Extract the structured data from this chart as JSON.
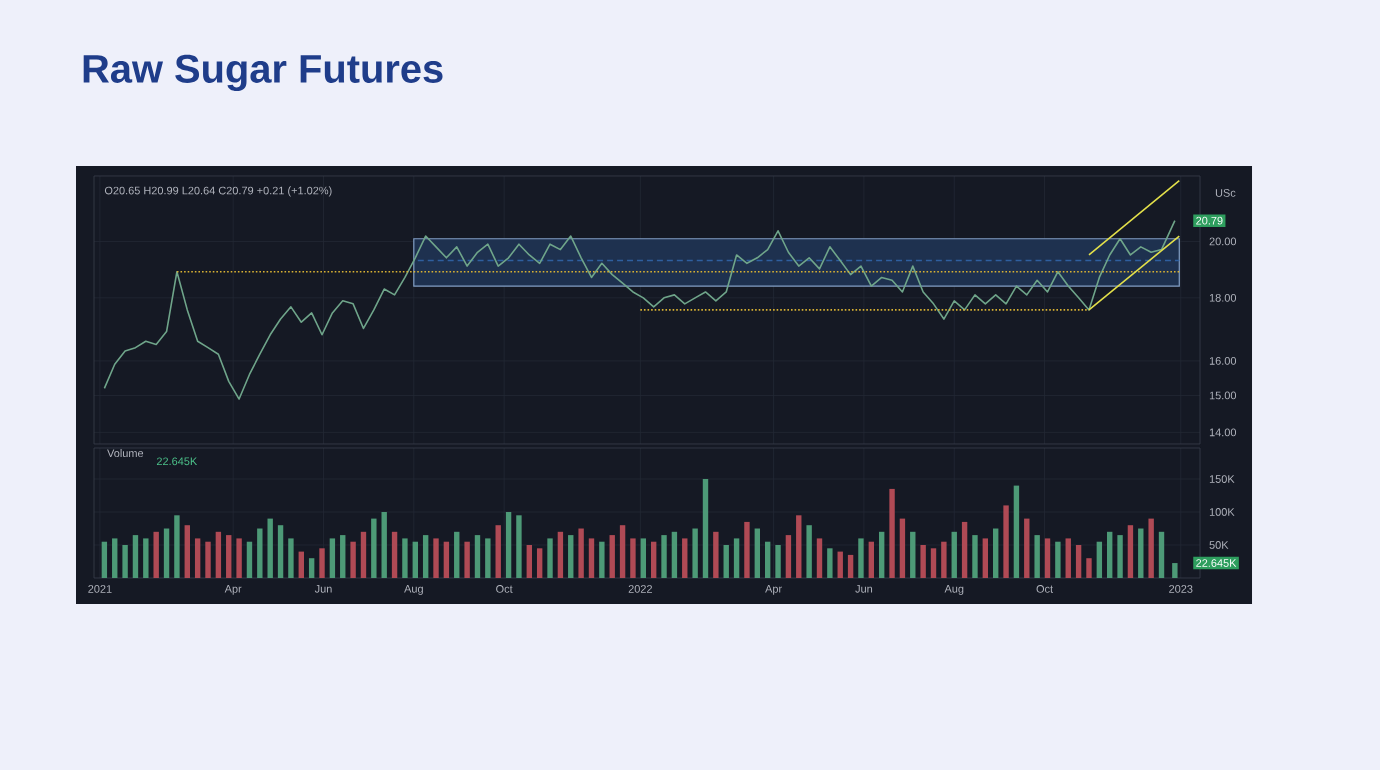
{
  "chart_data": [
    {
      "type": "line",
      "title": "Raw Sugar Futures",
      "ylabel": "USc",
      "log": "y",
      "grid": true,
      "tick_labels": "y",
      "xlim": [
        "2020-12-28",
        "2023-01-14"
      ],
      "ylim": [
        13.7,
        22.6
      ],
      "xticks": [
        {
          "value": "2021-01-01",
          "label": null
        },
        {
          "value": "2021-04-01",
          "label": null
        },
        {
          "value": "2021-06-01",
          "label": null
        },
        {
          "value": "2021-08-01",
          "label": null
        },
        {
          "value": "2021-10-01",
          "label": null
        },
        {
          "value": "2022-01-01",
          "label": null
        },
        {
          "value": "2022-04-01",
          "label": null
        },
        {
          "value": "2022-06-01",
          "label": null
        },
        {
          "value": "2022-08-01",
          "label": null
        },
        {
          "value": "2022-10-01",
          "label": null
        },
        {
          "value": "2023-01-01",
          "label": null
        }
      ],
      "yticks": [
        {
          "value": 14,
          "label": "14.00"
        },
        {
          "value": 15,
          "label": "15.00"
        },
        {
          "value": 16,
          "label": "16.00"
        },
        {
          "value": 18,
          "label": "18.00"
        },
        {
          "value": 20,
          "label": "20.00"
        }
      ],
      "annotations": [
        "O20.65 H20.99 L20.64 C20.79 +0.21 (+1.02%)",
        {
          "text": "20.79",
          "x": "2022-12-28",
          "y": 20.79
        }
      ],
      "series": [
        {
          "type": "line",
          "color": "#2f5f9e",
          "line_style": "dashed",
          "x": [
            "2021-08-01",
            "2022-12-31"
          ],
          "values": [
            19.3,
            19.3
          ],
          "lower": [
            18.4,
            18.4
          ],
          "upper": [
            20.1,
            20.1
          ]
        },
        {
          "color": "#6fa58a",
          "line_style": "solid",
          "x": [
            "2021-01-04",
            "2021-01-11",
            "2021-01-18",
            "2021-01-25",
            "2021-02-01",
            "2021-02-08",
            "2021-02-15",
            "2021-02-22",
            "2021-03-01",
            "2021-03-08",
            "2021-03-15",
            "2021-03-22",
            "2021-03-29",
            "2021-04-05",
            "2021-04-12",
            "2021-04-19",
            "2021-04-26",
            "2021-05-03",
            "2021-05-10",
            "2021-05-17",
            "2021-05-24",
            "2021-05-31",
            "2021-06-07",
            "2021-06-14",
            "2021-06-21",
            "2021-06-28",
            "2021-07-05",
            "2021-07-12",
            "2021-07-19",
            "2021-07-26",
            "2021-08-02",
            "2021-08-09",
            "2021-08-16",
            "2021-08-23",
            "2021-08-30",
            "2021-09-06",
            "2021-09-13",
            "2021-09-20",
            "2021-09-27",
            "2021-10-04",
            "2021-10-11",
            "2021-10-18",
            "2021-10-25",
            "2021-11-01",
            "2021-11-08",
            "2021-11-15",
            "2021-11-22",
            "2021-11-29",
            "2021-12-06",
            "2021-12-13",
            "2021-12-20",
            "2021-12-27",
            "2022-01-03",
            "2022-01-10",
            "2022-01-17",
            "2022-01-24",
            "2022-01-31",
            "2022-02-07",
            "2022-02-14",
            "2022-02-21",
            "2022-02-28",
            "2022-03-07",
            "2022-03-14",
            "2022-03-21",
            "2022-03-28",
            "2022-04-04",
            "2022-04-11",
            "2022-04-18",
            "2022-04-25",
            "2022-05-02",
            "2022-05-09",
            "2022-05-16",
            "2022-05-23",
            "2022-05-30",
            "2022-06-06",
            "2022-06-13",
            "2022-06-20",
            "2022-06-27",
            "2022-07-04",
            "2022-07-11",
            "2022-07-18",
            "2022-07-25",
            "2022-08-01",
            "2022-08-08",
            "2022-08-15",
            "2022-08-22",
            "2022-08-29",
            "2022-09-05",
            "2022-09-12",
            "2022-09-19",
            "2022-09-26",
            "2022-10-03",
            "2022-10-10",
            "2022-10-17",
            "2022-10-24",
            "2022-10-31",
            "2022-11-07",
            "2022-11-14",
            "2022-11-21",
            "2022-11-28",
            "2022-12-05",
            "2022-12-12",
            "2022-12-19",
            "2022-12-28"
          ],
          "values": [
            15.2,
            15.9,
            16.3,
            16.4,
            16.6,
            16.5,
            16.9,
            18.9,
            17.6,
            16.6,
            16.4,
            16.2,
            15.4,
            14.9,
            15.6,
            16.2,
            16.8,
            17.3,
            17.7,
            17.2,
            17.5,
            16.8,
            17.5,
            17.9,
            17.8,
            17.0,
            17.6,
            18.3,
            18.1,
            18.7,
            19.4,
            20.2,
            19.8,
            19.4,
            19.8,
            19.1,
            19.6,
            19.9,
            19.1,
            19.4,
            19.9,
            19.5,
            19.2,
            19.9,
            19.7,
            20.2,
            19.4,
            18.7,
            19.2,
            18.8,
            18.5,
            18.2,
            18.0,
            17.7,
            18.0,
            18.1,
            17.8,
            18.0,
            18.2,
            17.9,
            18.2,
            19.5,
            19.2,
            19.4,
            19.7,
            20.4,
            19.6,
            19.1,
            19.4,
            19.0,
            19.8,
            19.3,
            18.8,
            19.1,
            18.4,
            18.7,
            18.6,
            18.2,
            19.1,
            18.2,
            17.8,
            17.3,
            17.9,
            17.6,
            18.1,
            17.8,
            18.1,
            17.8,
            18.4,
            18.1,
            18.6,
            18.2,
            18.9,
            18.4,
            18.0,
            17.6,
            18.7,
            19.5,
            20.1,
            19.5,
            19.8,
            19.6,
            19.7,
            20.79
          ]
        },
        {
          "color": "#d9b233",
          "line_style": "dotted",
          "x": [
            "2021-02-22",
            "2022-12-31"
          ],
          "values": [
            18.9,
            18.9
          ]
        },
        {
          "color": "#d9b233",
          "line_style": "dotted",
          "x": [
            "2022-01-01",
            "2022-10-31"
          ],
          "values": [
            17.6,
            17.6
          ]
        },
        {
          "color": "#e3e04a",
          "line_style": "solid",
          "x": [
            "2022-10-31",
            "2022-12-31"
          ],
          "values": [
            17.6,
            20.2
          ]
        },
        {
          "color": "#e3e04a",
          "line_style": "solid",
          "x": [
            "2022-10-31",
            "2022-12-31"
          ],
          "values": [
            19.5,
            22.4
          ]
        }
      ]
    },
    {
      "type": "bar",
      "title": "Volume",
      "grid": true,
      "xlim": [
        "2020-12-28",
        "2023-01-14"
      ],
      "ylim": [
        0,
        197000
      ],
      "xticks": [
        {
          "value": "2021-01-01",
          "label": "2021"
        },
        {
          "value": "2021-04-01",
          "label": "Apr"
        },
        {
          "value": "2021-06-01",
          "label": "Jun"
        },
        {
          "value": "2021-08-01",
          "label": "Aug"
        },
        {
          "value": "2021-10-01",
          "label": "Oct"
        },
        {
          "value": "2022-01-01",
          "label": "2022"
        },
        {
          "value": "2022-04-01",
          "label": "Apr"
        },
        {
          "value": "2022-06-01",
          "label": "Jun"
        },
        {
          "value": "2022-08-01",
          "label": "Aug"
        },
        {
          "value": "2022-10-01",
          "label": "Oct"
        },
        {
          "value": "2023-01-01",
          "label": "2023"
        }
      ],
      "yticks": [
        {
          "value": 50000,
          "label": "50K"
        },
        {
          "value": 100000,
          "label": "100K"
        },
        {
          "value": 150000,
          "label": "150K"
        }
      ],
      "annotations": [
        "22.645K",
        {
          "text": "22.645K",
          "x": "2022-12-28",
          "y": 22645
        }
      ],
      "series": [
        {
          "x": [
            "2021-01-04",
            "2021-01-11",
            "2021-01-18",
            "2021-01-25",
            "2021-02-01",
            "2021-02-08",
            "2021-02-15",
            "2021-02-22",
            "2021-03-01",
            "2021-03-08",
            "2021-03-15",
            "2021-03-22",
            "2021-03-29",
            "2021-04-05",
            "2021-04-12",
            "2021-04-19",
            "2021-04-26",
            "2021-05-03",
            "2021-05-10",
            "2021-05-17",
            "2021-05-24",
            "2021-05-31",
            "2021-06-07",
            "2021-06-14",
            "2021-06-21",
            "2021-06-28",
            "2021-07-05",
            "2021-07-12",
            "2021-07-19",
            "2021-07-26",
            "2021-08-02",
            "2021-08-09",
            "2021-08-16",
            "2021-08-23",
            "2021-08-30",
            "2021-09-06",
            "2021-09-13",
            "2021-09-20",
            "2021-09-27",
            "2021-10-04",
            "2021-10-11",
            "2021-10-18",
            "2021-10-25",
            "2021-11-01",
            "2021-11-08",
            "2021-11-15",
            "2021-11-22",
            "2021-11-29",
            "2021-12-06",
            "2021-12-13",
            "2021-12-20",
            "2021-12-27",
            "2022-01-03",
            "2022-01-10",
            "2022-01-17",
            "2022-01-24",
            "2022-01-31",
            "2022-02-07",
            "2022-02-14",
            "2022-02-21",
            "2022-02-28",
            "2022-03-07",
            "2022-03-14",
            "2022-03-21",
            "2022-03-28",
            "2022-04-04",
            "2022-04-11",
            "2022-04-18",
            "2022-04-25",
            "2022-05-02",
            "2022-05-09",
            "2022-05-16",
            "2022-05-23",
            "2022-05-30",
            "2022-06-06",
            "2022-06-13",
            "2022-06-20",
            "2022-06-27",
            "2022-07-04",
            "2022-07-11",
            "2022-07-18",
            "2022-07-25",
            "2022-08-01",
            "2022-08-08",
            "2022-08-15",
            "2022-08-22",
            "2022-08-29",
            "2022-09-05",
            "2022-09-12",
            "2022-09-19",
            "2022-09-26",
            "2022-10-03",
            "2022-10-10",
            "2022-10-17",
            "2022-10-24",
            "2022-10-31",
            "2022-11-07",
            "2022-11-14",
            "2022-11-21",
            "2022-11-28",
            "2022-12-05",
            "2022-12-12",
            "2022-12-19",
            "2022-12-28"
          ],
          "values": [
            55000,
            60000,
            50000,
            65000,
            60000,
            70000,
            75000,
            95000,
            80000,
            60000,
            55000,
            70000,
            65000,
            60000,
            55000,
            75000,
            90000,
            80000,
            60000,
            40000,
            30000,
            45000,
            60000,
            65000,
            55000,
            70000,
            90000,
            100000,
            70000,
            60000,
            55000,
            65000,
            60000,
            55000,
            70000,
            55000,
            65000,
            60000,
            80000,
            100000,
            95000,
            50000,
            45000,
            60000,
            70000,
            65000,
            75000,
            60000,
            55000,
            65000,
            80000,
            60000,
            60000,
            55000,
            65000,
            70000,
            60000,
            75000,
            150000,
            70000,
            50000,
            60000,
            85000,
            75000,
            55000,
            50000,
            65000,
            95000,
            80000,
            60000,
            45000,
            40000,
            35000,
            60000,
            55000,
            70000,
            135000,
            90000,
            70000,
            50000,
            45000,
            55000,
            70000,
            85000,
            65000,
            60000,
            75000,
            110000,
            140000,
            90000,
            65000,
            60000,
            55000,
            60000,
            50000,
            30000,
            55000,
            70000,
            65000,
            80000,
            75000,
            90000,
            70000,
            22645
          ],
          "colors": [
            "#4d9a77",
            "#4d9a77",
            "#4d9a77",
            "#4d9a77",
            "#4d9a77",
            "#b04a55",
            "#4d9a77",
            "#4d9a77",
            "#b04a55",
            "#b04a55",
            "#b04a55",
            "#b04a55",
            "#b04a55",
            "#b04a55",
            "#4d9a77",
            "#4d9a77",
            "#4d9a77",
            "#4d9a77",
            "#4d9a77",
            "#b04a55",
            "#4d9a77",
            "#b04a55",
            "#4d9a77",
            "#4d9a77",
            "#b04a55",
            "#b04a55",
            "#4d9a77",
            "#4d9a77",
            "#b04a55",
            "#4d9a77",
            "#4d9a77",
            "#4d9a77",
            "#b04a55",
            "#b04a55",
            "#4d9a77",
            "#b04a55",
            "#4d9a77",
            "#4d9a77",
            "#b04a55",
            "#4d9a77",
            "#4d9a77",
            "#b04a55",
            "#b04a55",
            "#4d9a77",
            "#b04a55",
            "#4d9a77",
            "#b04a55",
            "#b04a55",
            "#4d9a77",
            "#b04a55",
            "#b04a55",
            "#b04a55",
            "#4d9a77",
            "#b04a55",
            "#4d9a77",
            "#4d9a77",
            "#b04a55",
            "#4d9a77",
            "#4d9a77",
            "#b04a55",
            "#4d9a77",
            "#4d9a77",
            "#b04a55",
            "#4d9a77",
            "#4d9a77",
            "#4d9a77",
            "#b04a55",
            "#b04a55",
            "#4d9a77",
            "#b04a55",
            "#4d9a77",
            "#b04a55",
            "#b04a55",
            "#4d9a77",
            "#b04a55",
            "#4d9a77",
            "#b04a55",
            "#b04a55",
            "#4d9a77",
            "#b04a55",
            "#b04a55",
            "#b04a55",
            "#4d9a77",
            "#b04a55",
            "#4d9a77",
            "#b04a55",
            "#4d9a77",
            "#b04a55",
            "#4d9a77",
            "#b04a55",
            "#4d9a77",
            "#b04a55",
            "#4d9a77",
            "#b04a55",
            "#b04a55",
            "#b04a55",
            "#4d9a77",
            "#4d9a77",
            "#4d9a77",
            "#b04a55",
            "#4d9a77",
            "#b04a55",
            "#4d9a77",
            "#4d9a77"
          ]
        }
      ]
    }
  ]
}
